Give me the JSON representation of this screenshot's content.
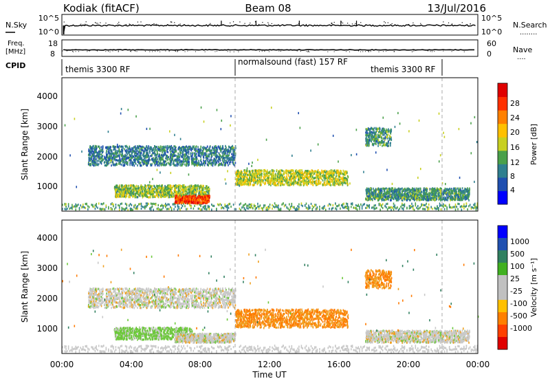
{
  "header": {
    "station": "Kodiak (fitACF)",
    "beam": "Beam 08",
    "date": "13/Jul/2016"
  },
  "nsky_panel": {
    "left_label": "N.Sky",
    "left_ticks": [
      "10^5",
      "10^0"
    ],
    "right_ticks": [
      "10^5",
      "10^0"
    ],
    "right_label": "N.Search",
    "right_label_dots": "........"
  },
  "freq_panel": {
    "left_label_1": "Freq.",
    "left_label_2": "[MHz]",
    "left_ticks": [
      "18",
      "8"
    ],
    "right_ticks": [
      "60",
      "0"
    ],
    "right_label": "Nave",
    "right_label_dots": "...."
  },
  "cpid": {
    "label": "CPID",
    "segments": [
      {
        "name": "themis 3300 RF",
        "start_hour": 0,
        "end_hour": 10
      },
      {
        "name": "normalsound (fast) 157 RF",
        "start_hour": 10,
        "end_hour": 22
      },
      {
        "name": "themis 3300 RF",
        "start_hour": 22,
        "end_hour": 24
      }
    ]
  },
  "axes": {
    "ylabel": "Slant Range [km]",
    "yticks": [
      "1000",
      "2000",
      "3000",
      "4000"
    ],
    "xlabel": "Time UT",
    "xticks": [
      "00:00",
      "04:00",
      "08:00",
      "12:00",
      "16:00",
      "20:00",
      "00:00"
    ]
  },
  "power_colorbar": {
    "label": "Power [dB]",
    "ticks": [
      "4",
      "8",
      "12",
      "16",
      "20",
      "24",
      "28"
    ],
    "colors": [
      "#0000ff",
      "#1f4fb0",
      "#2f7f8f",
      "#4aa04a",
      "#c8d020",
      "#ffc000",
      "#ff8000",
      "#ff3000",
      "#e00000"
    ]
  },
  "velocity_colorbar": {
    "label": "Velocity [m s⁻¹]",
    "ticks": [
      "1000",
      "500",
      "100",
      "25",
      "-25",
      "-100",
      "-500",
      "-1000"
    ],
    "colors": [
      "#0000ff",
      "#2050b0",
      "#308060",
      "#40b020",
      "#c0c0c0",
      "#c0c0c0",
      "#ffc000",
      "#ff8000",
      "#ff4000",
      "#e00000"
    ]
  },
  "chart_data": [
    {
      "type": "heatmap",
      "title": "Beam 08",
      "xlabel": "Time UT",
      "ylabel": "Slant Range [km]",
      "xlim": [
        0,
        24
      ],
      "ylim": [
        180,
        4600
      ],
      "colorbar": "Power [dB]",
      "features": [
        {
          "t0": 1.5,
          "t1": 10.0,
          "r0": 1650,
          "r1": 2300,
          "level": 8
        },
        {
          "t0": 3.0,
          "t1": 8.5,
          "r0": 600,
          "r1": 1000,
          "level": 14
        },
        {
          "t0": 6.5,
          "t1": 8.5,
          "r0": 400,
          "r1": 650,
          "level": 28
        },
        {
          "t0": 10.0,
          "t1": 16.5,
          "r0": 1000,
          "r1": 1500,
          "level": 16
        },
        {
          "t0": 17.5,
          "t1": 23.5,
          "r0": 500,
          "r1": 900,
          "level": 10
        },
        {
          "t0": 17.5,
          "t1": 19.0,
          "r0": 2300,
          "r1": 2900,
          "level": 10
        }
      ]
    },
    {
      "type": "heatmap",
      "title": "Beam 08",
      "xlabel": "Time UT",
      "ylabel": "Slant Range [km]",
      "xlim": [
        0,
        24
      ],
      "ylim": [
        180,
        4600
      ],
      "colorbar": "Velocity [m s-1]",
      "features": [
        {
          "t0": 1.5,
          "t1": 10.0,
          "r0": 1650,
          "r1": 2300,
          "velocity": 0
        },
        {
          "t0": 3.0,
          "t1": 7.5,
          "r0": 600,
          "r1": 1000,
          "velocity": 100
        },
        {
          "t0": 6.5,
          "t1": 10.0,
          "r0": 500,
          "r1": 800,
          "velocity": 0
        },
        {
          "t0": 10.0,
          "t1": 16.5,
          "r0": 1000,
          "r1": 1600,
          "velocity": -300
        },
        {
          "t0": 17.5,
          "t1": 23.5,
          "r0": 500,
          "r1": 900,
          "velocity": 0
        },
        {
          "t0": 17.5,
          "t1": 19.0,
          "r0": 2300,
          "r1": 2900,
          "velocity": -300
        }
      ]
    }
  ]
}
